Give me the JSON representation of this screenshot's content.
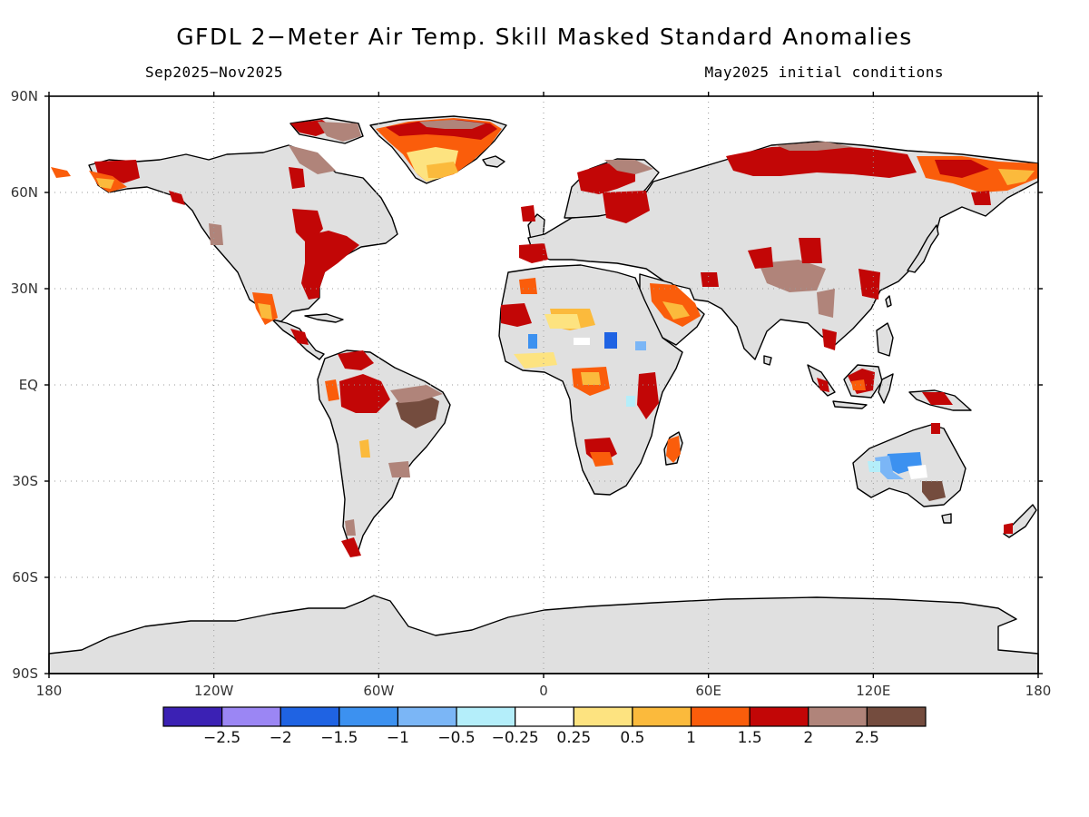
{
  "header": {
    "title": "GFDL 2−Meter Air Temp. Skill Masked Standard Anomalies",
    "period": "Sep2025−Nov2025",
    "initial_conditions": "May2025 initial conditions"
  },
  "axes": {
    "lat_labels": [
      "90N",
      "60N",
      "30N",
      "EQ",
      "30S",
      "60S",
      "90S"
    ],
    "lat_values": [
      90,
      60,
      30,
      0,
      -30,
      -60,
      -90
    ],
    "lon_labels": [
      "180",
      "120W",
      "60W",
      "0",
      "60E",
      "120E",
      "180"
    ],
    "lon_values": [
      -180,
      -120,
      -60,
      0,
      60,
      120,
      180
    ]
  },
  "colorbar": {
    "colors": [
      "#3b21b4",
      "#9b86f4",
      "#1f63e3",
      "#3c91f0",
      "#7bb6f6",
      "#b4eefa",
      "#ffffff",
      "#fde380",
      "#fbba3c",
      "#fa5d0b",
      "#c20606",
      "#b0847a",
      "#744c3e"
    ],
    "labels": [
      "−2.5",
      "−2",
      "−1.5",
      "−1",
      "−0.5",
      "−0.25",
      "0.25",
      "0.5",
      "1",
      "1.5",
      "2",
      "2.5"
    ]
  },
  "colors": {
    "land_masked": "#e0e0e0",
    "grid": "#9a9a9a"
  }
}
